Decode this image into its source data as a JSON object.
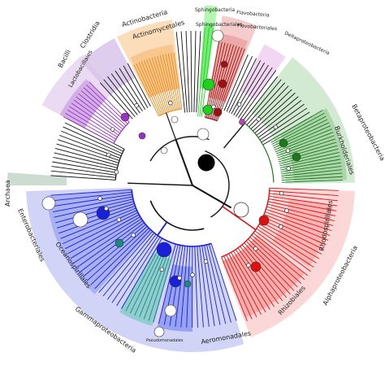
{
  "labels": {
    "archaea": "Archaea",
    "bacilli": "Bacilli",
    "clostridia": "Clostridia",
    "lactobacillales": "Lactobacillales",
    "actinobacteria": "Actinobacteria",
    "actinomycetales": "Actinomycetales",
    "sphingobacteria": "Sphingobacteria",
    "sphingobacteriales": "Sphingobacteriales",
    "flavobacteria": "Flavobacteria",
    "flavobacteriales": "Flavobacteriales",
    "deltaproteobacteria": "Deltaproteobacteria",
    "betaproteobacteria": "Betaproteobacteria",
    "burkholderiales": "Burkholderiales",
    "rhodospirillales": "Rhodospirillales",
    "alphaproteobacteria": "Alphaproteobacteria",
    "rhizobiales": "Rhizobiales",
    "aeromonadales": "Aeromonadales",
    "gammaproteobacteria": "Gammaproteobacteria",
    "pseudomonadales": "Pseudomonadales",
    "oceanospirillales": "Oceanospirillales",
    "enterobacteriales": "Enterobacteriales"
  },
  "colors": {
    "firmicutes_bg": "#e6d3f0",
    "firmicutes_node": "#9b30c8",
    "actino_bg": "#fbd7ad",
    "actino_node": "#e88a1a",
    "sphingo_bg": "#aef5ae",
    "sphingo_node": "#1fd11f",
    "flavo_bg": "#f2c3c3",
    "flavo_node": "#a01010",
    "delta_bg": "#f0d0f0",
    "delta_node": "#c040c0",
    "beta_bg": "#c9e6c9",
    "beta_node": "#1a7a1a",
    "alpha_bg": "#fbd0d0",
    "alpha_node": "#e01010",
    "gamma_bg": "#c9cdf5",
    "gamma_node": "#1820d8",
    "teal_node": "#1a8a80",
    "branch": "#111111"
  }
}
